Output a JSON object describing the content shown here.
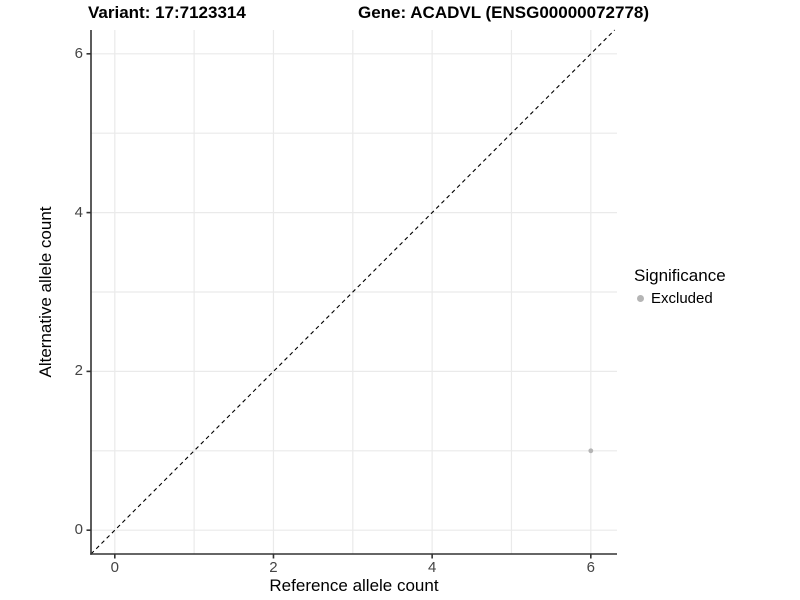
{
  "chart_data": {
    "type": "scatter",
    "title_left": "Variant: 17:7123314",
    "title_right": "Gene: ACADVL (ENSG00000072778)",
    "xlabel": "Reference allele count",
    "ylabel": "Alternative allele count",
    "xlim": [
      -0.3,
      6.33
    ],
    "ylim": [
      -0.3,
      6.3
    ],
    "x_ticks": [
      0,
      2,
      4,
      6
    ],
    "y_ticks": [
      0,
      2,
      4,
      6
    ],
    "grid_positions": [
      0,
      1,
      2,
      3,
      4,
      5,
      6
    ],
    "grid": true,
    "series": [
      {
        "name": "Excluded",
        "color": "#b5b5b5",
        "points": [
          {
            "x": 6,
            "y": 1
          }
        ]
      }
    ],
    "reference_line": {
      "type": "identity",
      "style": "dashed",
      "color": "#000000"
    },
    "legend": {
      "position": "right",
      "title": "Significance",
      "entries": [
        {
          "label": "Excluded",
          "color": "#b5b5b5",
          "marker": "circle-icon"
        }
      ]
    },
    "colors": {
      "grid": "#eaeaea",
      "axis": "#333333",
      "tick_text": "#444444",
      "point": "#b5b5b5",
      "background": "#ffffff"
    }
  }
}
